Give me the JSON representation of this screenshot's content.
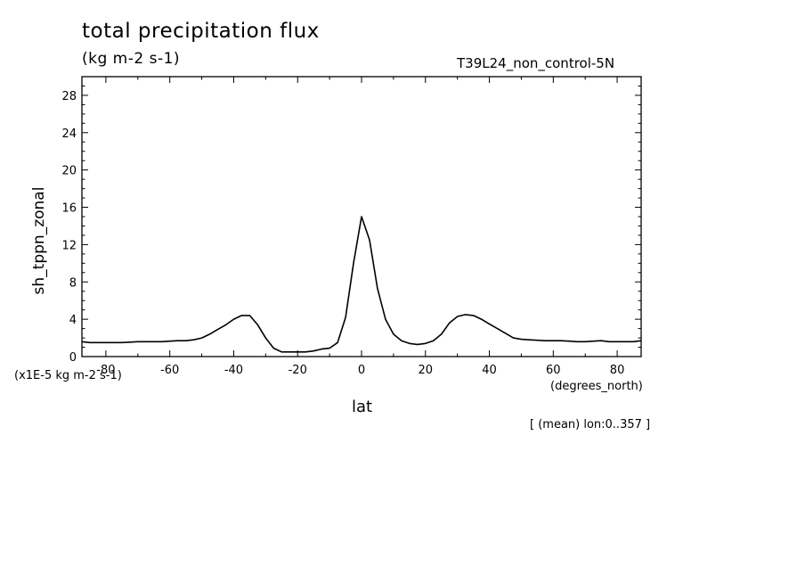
{
  "chart_data": {
    "type": "line",
    "title": "total precipitation flux",
    "subtitle": "(kg m-2 s-1)",
    "run_label": "T39L24_non_control-5N",
    "ylabel": "sh_tppn_zonal",
    "y_units": "(x1E-5 kg m-2 s-1)",
    "xlabel": "lat",
    "x_units": "(degrees_north)",
    "note": "[ (mean) lon:0..357 ]",
    "xlim": [
      -87.5,
      87.5
    ],
    "ylim": [
      0,
      30
    ],
    "xticks": [
      "-80",
      "-60",
      "-40",
      "-20",
      "0",
      "20",
      "40",
      "60",
      "80"
    ],
    "yticks": [
      "0",
      "4",
      "8",
      "12",
      "16",
      "20",
      "24",
      "28"
    ],
    "series": [
      {
        "x": [
          -87.5,
          -85,
          -82.5,
          -80,
          -77.5,
          -75,
          -72.5,
          -70,
          -67.5,
          -65,
          -62.5,
          -60,
          -57.5,
          -55,
          -52.5,
          -50,
          -47.5,
          -45,
          -42.5,
          -40,
          -37.5,
          -35,
          -32.5,
          -30,
          -27.5,
          -25,
          -22.5,
          -20,
          -17.5,
          -15,
          -12.5,
          -10,
          -7.5,
          -5,
          -2.5,
          0,
          2.5,
          5,
          7.5,
          10,
          12.5,
          15,
          17.5,
          20,
          22.5,
          25,
          27.5,
          30,
          32.5,
          35,
          37.5,
          40,
          42.5,
          45,
          47.5,
          50,
          52.5,
          55,
          57.5,
          60,
          62.5,
          65,
          67.5,
          70,
          72.5,
          75,
          77.5,
          80,
          82.5,
          85,
          87.5
        ],
        "y": [
          1.6,
          1.5,
          1.5,
          1.5,
          1.5,
          1.5,
          1.55,
          1.6,
          1.6,
          1.6,
          1.6,
          1.65,
          1.7,
          1.7,
          1.8,
          2.0,
          2.4,
          2.9,
          3.4,
          4.0,
          4.4,
          4.4,
          3.4,
          2.0,
          0.9,
          0.5,
          0.5,
          0.5,
          0.5,
          0.6,
          0.8,
          0.9,
          1.5,
          4.2,
          10.0,
          15.0,
          12.5,
          7.3,
          4.0,
          2.4,
          1.7,
          1.4,
          1.3,
          1.4,
          1.7,
          2.4,
          3.6,
          4.3,
          4.5,
          4.4,
          4.0,
          3.5,
          3.0,
          2.5,
          2.0,
          1.85,
          1.8,
          1.75,
          1.7,
          1.7,
          1.7,
          1.65,
          1.6,
          1.6,
          1.65,
          1.7,
          1.6,
          1.6,
          1.6,
          1.6,
          1.7
        ]
      }
    ]
  }
}
